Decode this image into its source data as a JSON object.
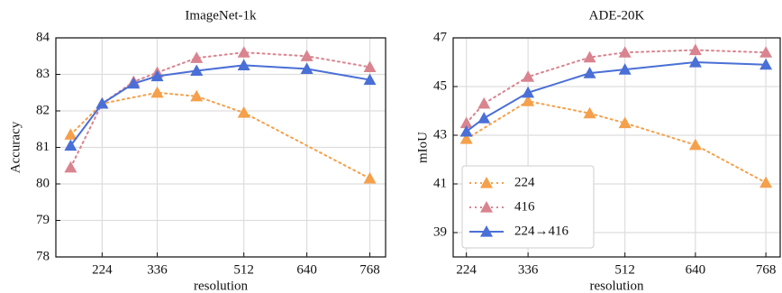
{
  "chart_data": [
    {
      "type": "line",
      "title": "ImageNet-1k",
      "xlabel": "resolution",
      "ylabel": "Accuracy",
      "xlim": [
        130,
        800
      ],
      "ylim": [
        78,
        84
      ],
      "xticks": [
        224,
        336,
        512,
        640,
        768
      ],
      "yticks": [
        78,
        79,
        80,
        81,
        82,
        83,
        84
      ],
      "grid": true,
      "series": [
        {
          "color": "#f5a04a",
          "dash": true,
          "x": [
            160,
            224,
            336,
            416,
            512,
            768
          ],
          "values": [
            81.35,
            82.2,
            82.5,
            82.4,
            81.95,
            80.15
          ]
        },
        {
          "color": "#d9848f",
          "dash": true,
          "x": [
            160,
            224,
            288,
            336,
            416,
            512,
            640,
            768
          ],
          "values": [
            80.45,
            82.2,
            82.8,
            83.05,
            83.45,
            83.6,
            83.5,
            83.2
          ]
        },
        {
          "color": "#4a6fd6",
          "dash": false,
          "x": [
            160,
            224,
            288,
            336,
            416,
            512,
            640,
            768
          ],
          "values": [
            81.05,
            82.2,
            82.75,
            82.95,
            83.1,
            83.25,
            83.15,
            82.85
          ]
        }
      ]
    },
    {
      "type": "line",
      "title": "ADE-20K",
      "xlabel": "resolution",
      "ylabel": "mIoU",
      "xlim": [
        200,
        794
      ],
      "ylim": [
        38,
        47
      ],
      "xticks": [
        224,
        336,
        512,
        640,
        768
      ],
      "yticks": [
        39,
        41,
        43,
        45,
        47
      ],
      "grid": true,
      "legend": "lower left",
      "series": [
        {
          "name": "224",
          "color": "#f5a04a",
          "dash": true,
          "x": [
            224,
            336,
            448,
            512,
            640,
            768
          ],
          "values": [
            42.85,
            44.4,
            43.9,
            43.5,
            42.6,
            41.05
          ]
        },
        {
          "name": "416",
          "color": "#d9848f",
          "dash": true,
          "x": [
            224,
            256,
            336,
            448,
            512,
            640,
            768
          ],
          "values": [
            43.5,
            44.3,
            45.4,
            46.2,
            46.4,
            46.5,
            46.4
          ]
        },
        {
          "name": "224→416",
          "color": "#4a6fd6",
          "dash": false,
          "x": [
            224,
            256,
            336,
            448,
            512,
            640,
            768
          ],
          "values": [
            43.15,
            43.7,
            44.75,
            45.55,
            45.7,
            46.0,
            45.9
          ]
        }
      ]
    }
  ]
}
